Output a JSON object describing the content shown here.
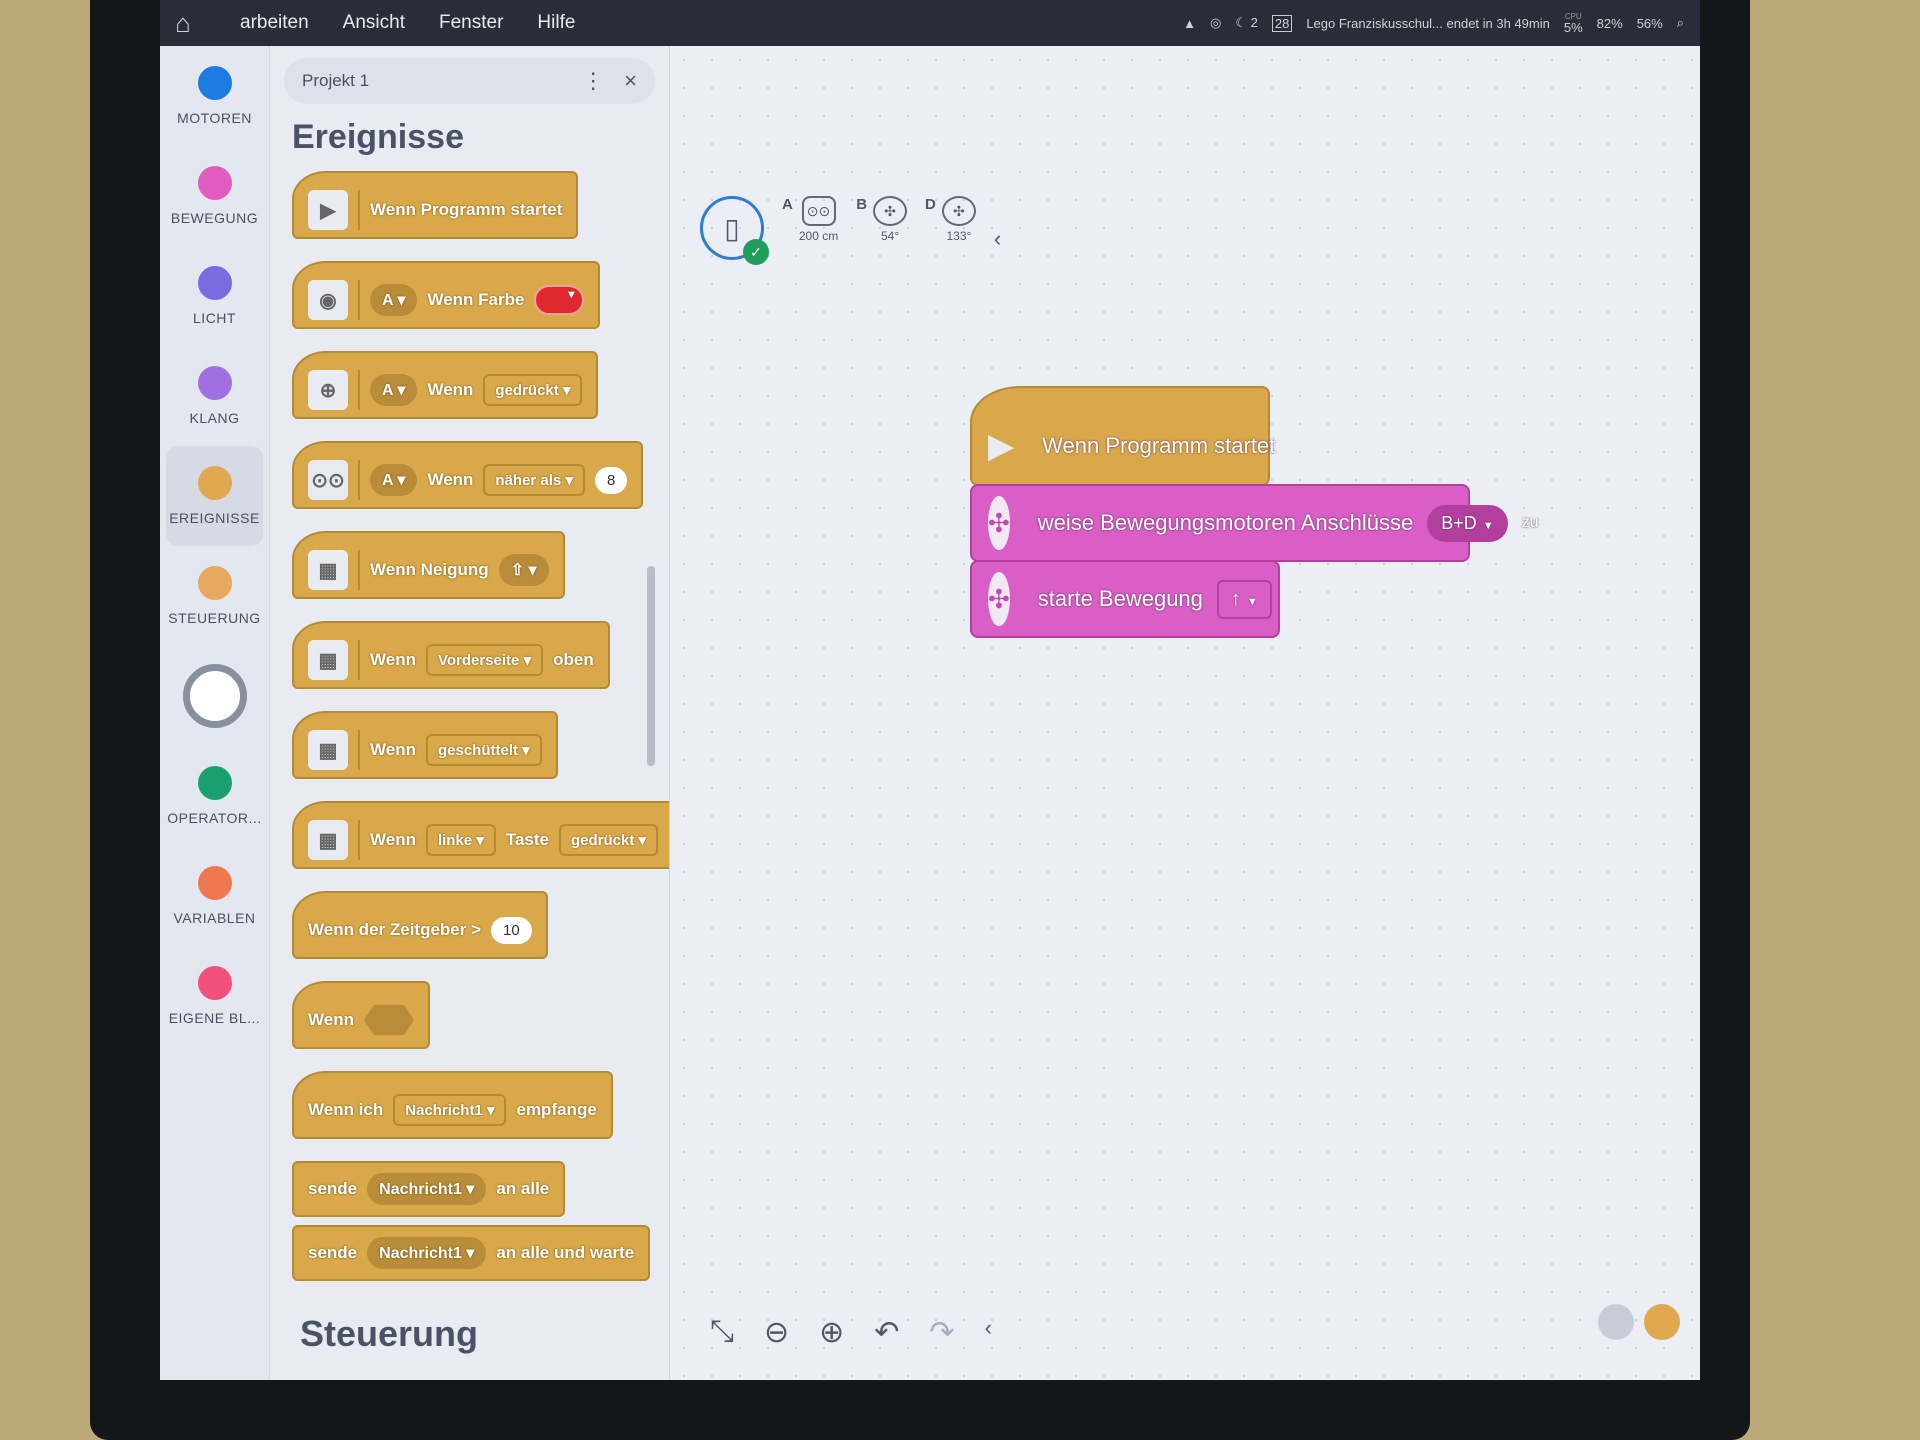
{
  "menubar": {
    "items": [
      "arbeiten",
      "Ansicht",
      "Fenster",
      "Hilfe"
    ],
    "tray": {
      "moon_count": "2",
      "calendar_day": "28",
      "meeting": "Lego Franziskusschul... endet in 3h 49min",
      "cpu_label": "CPU",
      "cpu": "5%",
      "ram": "82%",
      "disk": "56%"
    }
  },
  "categories": [
    {
      "label": "MOTOREN",
      "color": "#1e7be0"
    },
    {
      "label": "BEWEGUNG",
      "color": "#e05cc0"
    },
    {
      "label": "LICHT",
      "color": "#7b6ae0"
    },
    {
      "label": "KLANG",
      "color": "#a070e0"
    },
    {
      "label": "EREIGNISSE",
      "color": "#e0a850",
      "selected": true
    },
    {
      "label": "STEUERUNG",
      "color": "#e8a860"
    },
    {
      "label": "",
      "color": "#8890a0"
    },
    {
      "label": "OPERATOR...",
      "color": "#1aa070"
    },
    {
      "label": "VARIABLEN",
      "color": "#f07850"
    },
    {
      "label": "EIGENE BL...",
      "color": "#f0507a"
    }
  ],
  "palette": {
    "tab": "Projekt 1",
    "title": "Ereignisse",
    "section_next": "Steuerung",
    "blocks": {
      "b1": "Wenn Programm startet",
      "b2": {
        "port": "A",
        "text": "Wenn Farbe"
      },
      "b3": {
        "port": "A",
        "text": "Wenn",
        "state": "gedrückt"
      },
      "b4": {
        "port": "A",
        "text": "Wenn",
        "cmp": "näher als",
        "value": "8"
      },
      "b5": "Wenn Neigung",
      "b6": {
        "text": "Wenn",
        "side": "Vorderseite",
        "suffix": "oben"
      },
      "b7": {
        "text": "Wenn",
        "gesture": "geschüttelt"
      },
      "b8": {
        "text": "Wenn",
        "button": "linke",
        "mid": "Taste",
        "state": "gedrückt"
      },
      "b9": {
        "text": "Wenn der Zeitgeber >",
        "value": "10"
      },
      "b10": "Wenn",
      "b11": {
        "text": "Wenn ich",
        "msg": "Nachricht1",
        "suffix": "empfange"
      },
      "b12": {
        "text": "sende",
        "msg": "Nachricht1",
        "suffix": "an alle"
      },
      "b13": {
        "text": "sende",
        "msg": "Nachricht1",
        "suffix": "an alle und warte"
      }
    }
  },
  "hub": {
    "ports": [
      {
        "port": "A",
        "value": "200 cm"
      },
      {
        "port": "B",
        "value": "54°"
      },
      {
        "port": "D",
        "value": "133°"
      }
    ]
  },
  "script": {
    "start": "Wenn Programm startet",
    "assign": {
      "text": "weise Bewegungsmotoren Anschlüsse",
      "ports": "B+D",
      "suffix": "zu"
    },
    "move": {
      "text": "starte Bewegung",
      "dir": "↑"
    }
  }
}
